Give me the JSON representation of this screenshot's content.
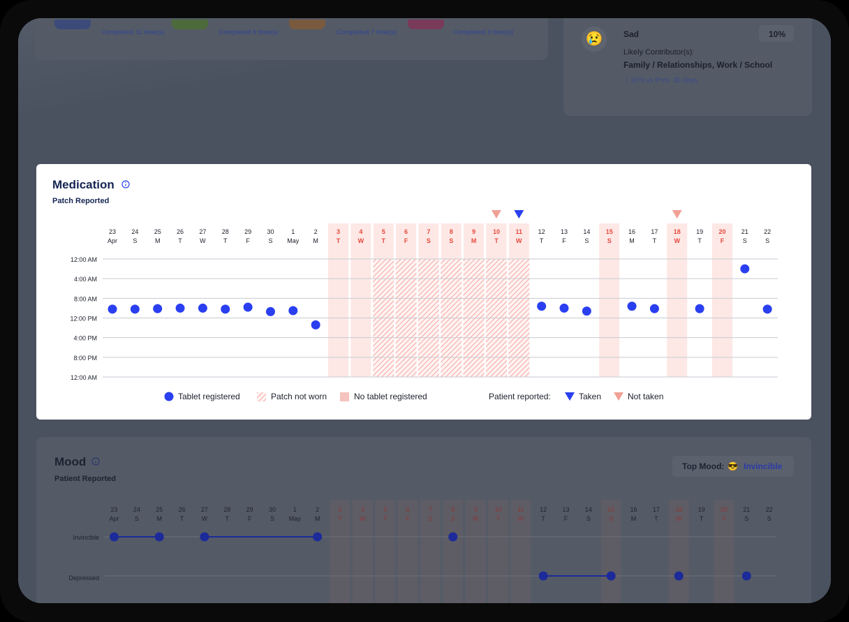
{
  "top_cards": {
    "completed": [
      "Completed 11 time(s)",
      "Completed 9 time(s)",
      "Completed 7 time(s)",
      "Completed 3 time(s)"
    ]
  },
  "mood_stat": {
    "emoji": "😢",
    "label": "Sad",
    "percent": "10%",
    "contributors_label": "Likely Contributor(s):",
    "contributors": "Family / Relationships, Work / School",
    "change": "↑  10% vs Prev. 30 days"
  },
  "medication": {
    "title": "Medication",
    "subtitle": "Patch Reported",
    "info_icon": "info-icon",
    "days": [
      {
        "d": "23",
        "w": "Apr",
        "red": false
      },
      {
        "d": "24",
        "w": "S",
        "red": false
      },
      {
        "d": "25",
        "w": "M",
        "red": false
      },
      {
        "d": "26",
        "w": "T",
        "red": false
      },
      {
        "d": "27",
        "w": "W",
        "red": false
      },
      {
        "d": "28",
        "w": "T",
        "red": false
      },
      {
        "d": "29",
        "w": "F",
        "red": false
      },
      {
        "d": "30",
        "w": "S",
        "red": false
      },
      {
        "d": "1",
        "w": "May",
        "red": false
      },
      {
        "d": "2",
        "w": "M",
        "red": false
      },
      {
        "d": "3",
        "w": "T",
        "red": true
      },
      {
        "d": "4",
        "w": "W",
        "red": true
      },
      {
        "d": "5",
        "w": "T",
        "red": true
      },
      {
        "d": "6",
        "w": "F",
        "red": true
      },
      {
        "d": "7",
        "w": "S",
        "red": true
      },
      {
        "d": "8",
        "w": "S",
        "red": true
      },
      {
        "d": "9",
        "w": "M",
        "red": true
      },
      {
        "d": "10",
        "w": "T",
        "red": true
      },
      {
        "d": "11",
        "w": "W",
        "red": true
      },
      {
        "d": "12",
        "w": "T",
        "red": false
      },
      {
        "d": "13",
        "w": "F",
        "red": false
      },
      {
        "d": "14",
        "w": "S",
        "red": false
      },
      {
        "d": "15",
        "w": "S",
        "red": true
      },
      {
        "d": "16",
        "w": "M",
        "red": false
      },
      {
        "d": "17",
        "w": "T",
        "red": false
      },
      {
        "d": "18",
        "w": "W",
        "red": true
      },
      {
        "d": "19",
        "w": "T",
        "red": false
      },
      {
        "d": "20",
        "w": "F",
        "red": true
      },
      {
        "d": "21",
        "w": "S",
        "red": false
      },
      {
        "d": "22",
        "w": "S",
        "red": false
      }
    ],
    "y_labels": [
      "12:00 AM",
      "4:00 AM",
      "8:00 AM",
      "12:00 PM",
      "4:00 PM",
      "8:00 PM",
      "12:00 AM"
    ],
    "legend": {
      "tablet": "Tablet registered",
      "patch": "Patch not worn",
      "no_tablet": "No tablet registered",
      "patient_reported": "Patient reported:",
      "taken": "Taken",
      "not_taken": "Not taken"
    },
    "colors": {
      "dot": "#2a3ff0",
      "no_tablet": "#fde8e6",
      "patch_hatch": "#f4a7a0",
      "red_label": "#e54a3c",
      "not_taken": "#f0a095",
      "taken": "#2a3ff0"
    }
  },
  "chart_data": {
    "type": "scatter",
    "title": "Medication",
    "subtitle": "Patch Reported",
    "x_dates": [
      "Apr 23",
      "Apr 24",
      "Apr 25",
      "Apr 26",
      "Apr 27",
      "Apr 28",
      "Apr 29",
      "Apr 30",
      "May 1",
      "May 2",
      "May 3",
      "May 4",
      "May 5",
      "May 6",
      "May 7",
      "May 8",
      "May 9",
      "May 10",
      "May 11",
      "May 12",
      "May 13",
      "May 14",
      "May 15",
      "May 16",
      "May 17",
      "May 18",
      "May 19",
      "May 20",
      "May 21",
      "May 22"
    ],
    "y_hours_range": [
      0,
      24
    ],
    "y_ticks": [
      "12:00 AM",
      "4:00 AM",
      "8:00 AM",
      "12:00 PM",
      "4:00 PM",
      "8:00 PM",
      "12:00 AM"
    ],
    "tablet_registered_hours": [
      10.2,
      10.2,
      10.1,
      10.0,
      10.0,
      10.2,
      9.8,
      10.7,
      10.5,
      13.4,
      null,
      null,
      null,
      null,
      null,
      null,
      null,
      null,
      null,
      9.6,
      10.0,
      10.6,
      null,
      9.6,
      10.1,
      null,
      10.1,
      null,
      2.0,
      10.2
    ],
    "no_tablet_registered_days": [
      10,
      11,
      12,
      13,
      14,
      15,
      16,
      17,
      18,
      22,
      25,
      27
    ],
    "patch_not_worn_days": [
      12,
      13,
      14,
      15,
      16,
      17,
      18
    ],
    "patient_reported": {
      "taken_days": [
        18
      ],
      "not_taken_days": [
        17,
        25
      ]
    }
  },
  "mood": {
    "title": "Mood",
    "subtitle": "Patient Reported",
    "top_mood_label": "Top Mood:",
    "top_mood_emoji": "😎",
    "top_mood_value": "Invincible",
    "y_labels": [
      "Invincible",
      "Depressed"
    ],
    "invincible_days": [
      0,
      2,
      4,
      9,
      15
    ],
    "depressed_days": [
      19,
      22,
      25,
      28
    ],
    "invincible_links": [
      [
        0,
        2
      ],
      [
        4,
        9
      ]
    ],
    "depressed_links": [
      [
        19,
        22
      ]
    ]
  }
}
